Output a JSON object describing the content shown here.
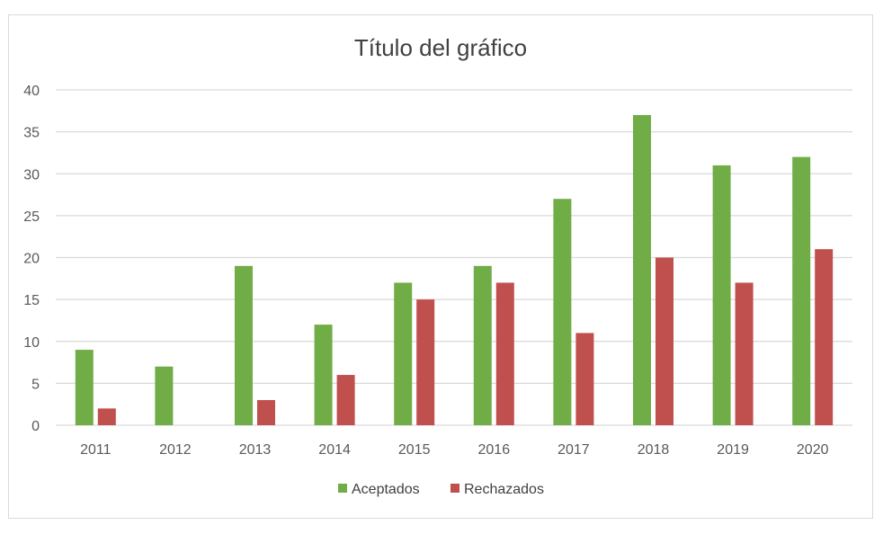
{
  "chart_data": {
    "type": "bar",
    "title": "Título del gráfico",
    "xlabel": "",
    "ylabel": "",
    "categories": [
      "2011",
      "2012",
      "2013",
      "2014",
      "2015",
      "2016",
      "2017",
      "2018",
      "2019",
      "2020"
    ],
    "series": [
      {
        "name": "Aceptados",
        "color": "#70ad47",
        "values": [
          9,
          7,
          19,
          12,
          17,
          19,
          27,
          37,
          31,
          32
        ]
      },
      {
        "name": "Rechazados",
        "color": "#c0504d",
        "values": [
          2,
          0,
          3,
          6,
          15,
          17,
          11,
          20,
          17,
          21
        ]
      }
    ],
    "ylim": [
      0,
      40
    ],
    "yticks": [
      "0",
      "5",
      "10",
      "15",
      "20",
      "25",
      "30",
      "35",
      "40"
    ],
    "grid": true,
    "legend_position": "bottom"
  }
}
